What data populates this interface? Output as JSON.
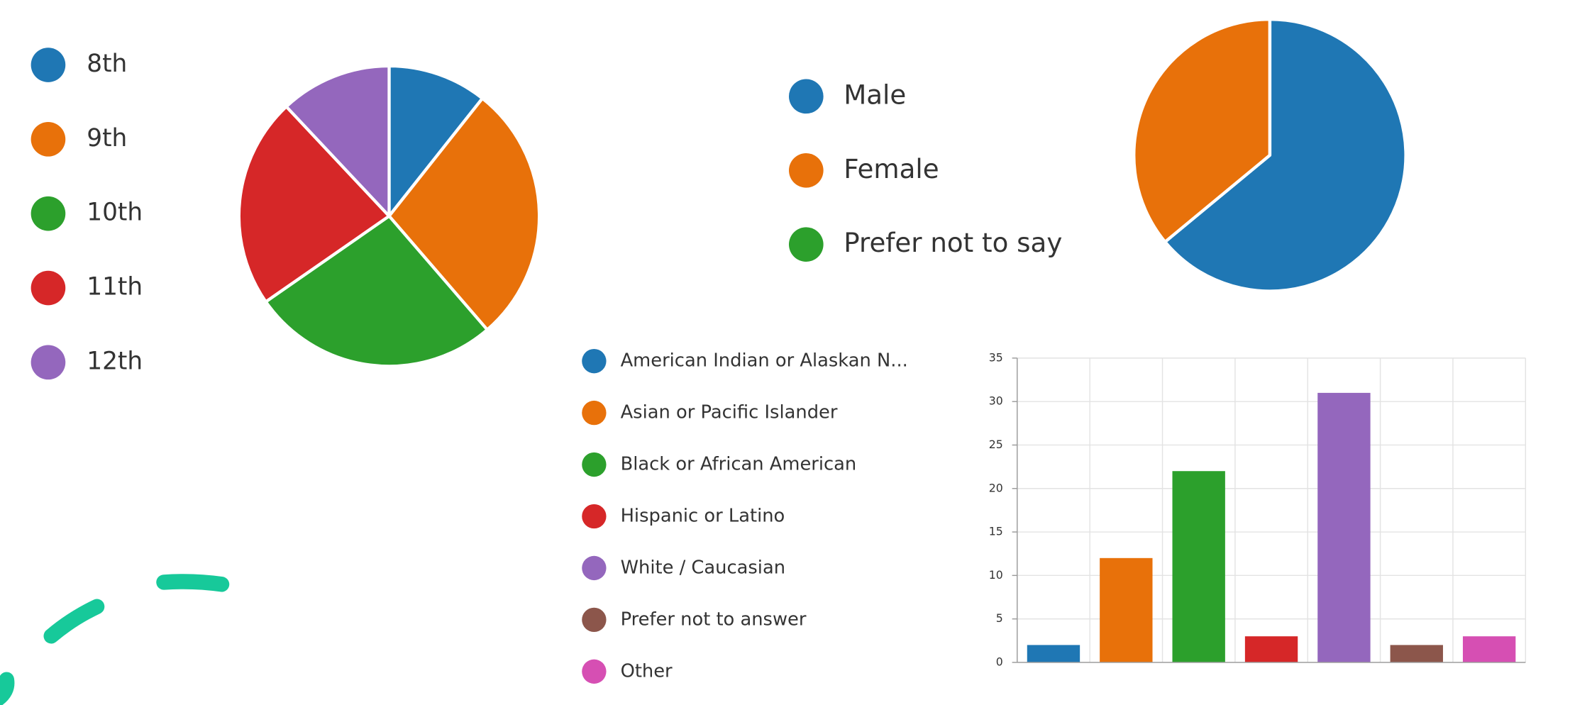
{
  "chart_data": [
    {
      "type": "pie",
      "categories": [
        "8th",
        "9th",
        "10th",
        "11th",
        "12th"
      ],
      "values": [
        8,
        21,
        20,
        17,
        9
      ],
      "colors": [
        "#1f77b4",
        "#e8710a",
        "#2ca02c",
        "#d62728",
        "#9467bd"
      ]
    },
    {
      "type": "pie",
      "categories": [
        "Male",
        "Female",
        "Prefer not to say"
      ],
      "values": [
        48,
        27,
        0
      ],
      "colors": [
        "#1f77b4",
        "#e8710a",
        "#2ca02c"
      ]
    },
    {
      "type": "bar",
      "categories": [
        "American Indian or Alaskan N...",
        "Asian or Pacific Islander",
        "Black or African American",
        "Hispanic or Latino",
        "White / Caucasian",
        "Prefer not to answer",
        "Other"
      ],
      "values": [
        2,
        12,
        22,
        3,
        31,
        2,
        3
      ],
      "colors": [
        "#1f77b4",
        "#e8710a",
        "#2ca02c",
        "#d62728",
        "#9467bd",
        "#8c564b",
        "#d64fb3"
      ],
      "ylim": [
        0,
        35
      ],
      "yticks": [
        0,
        5,
        10,
        15,
        20,
        25,
        30,
        35
      ],
      "grid": true
    }
  ]
}
